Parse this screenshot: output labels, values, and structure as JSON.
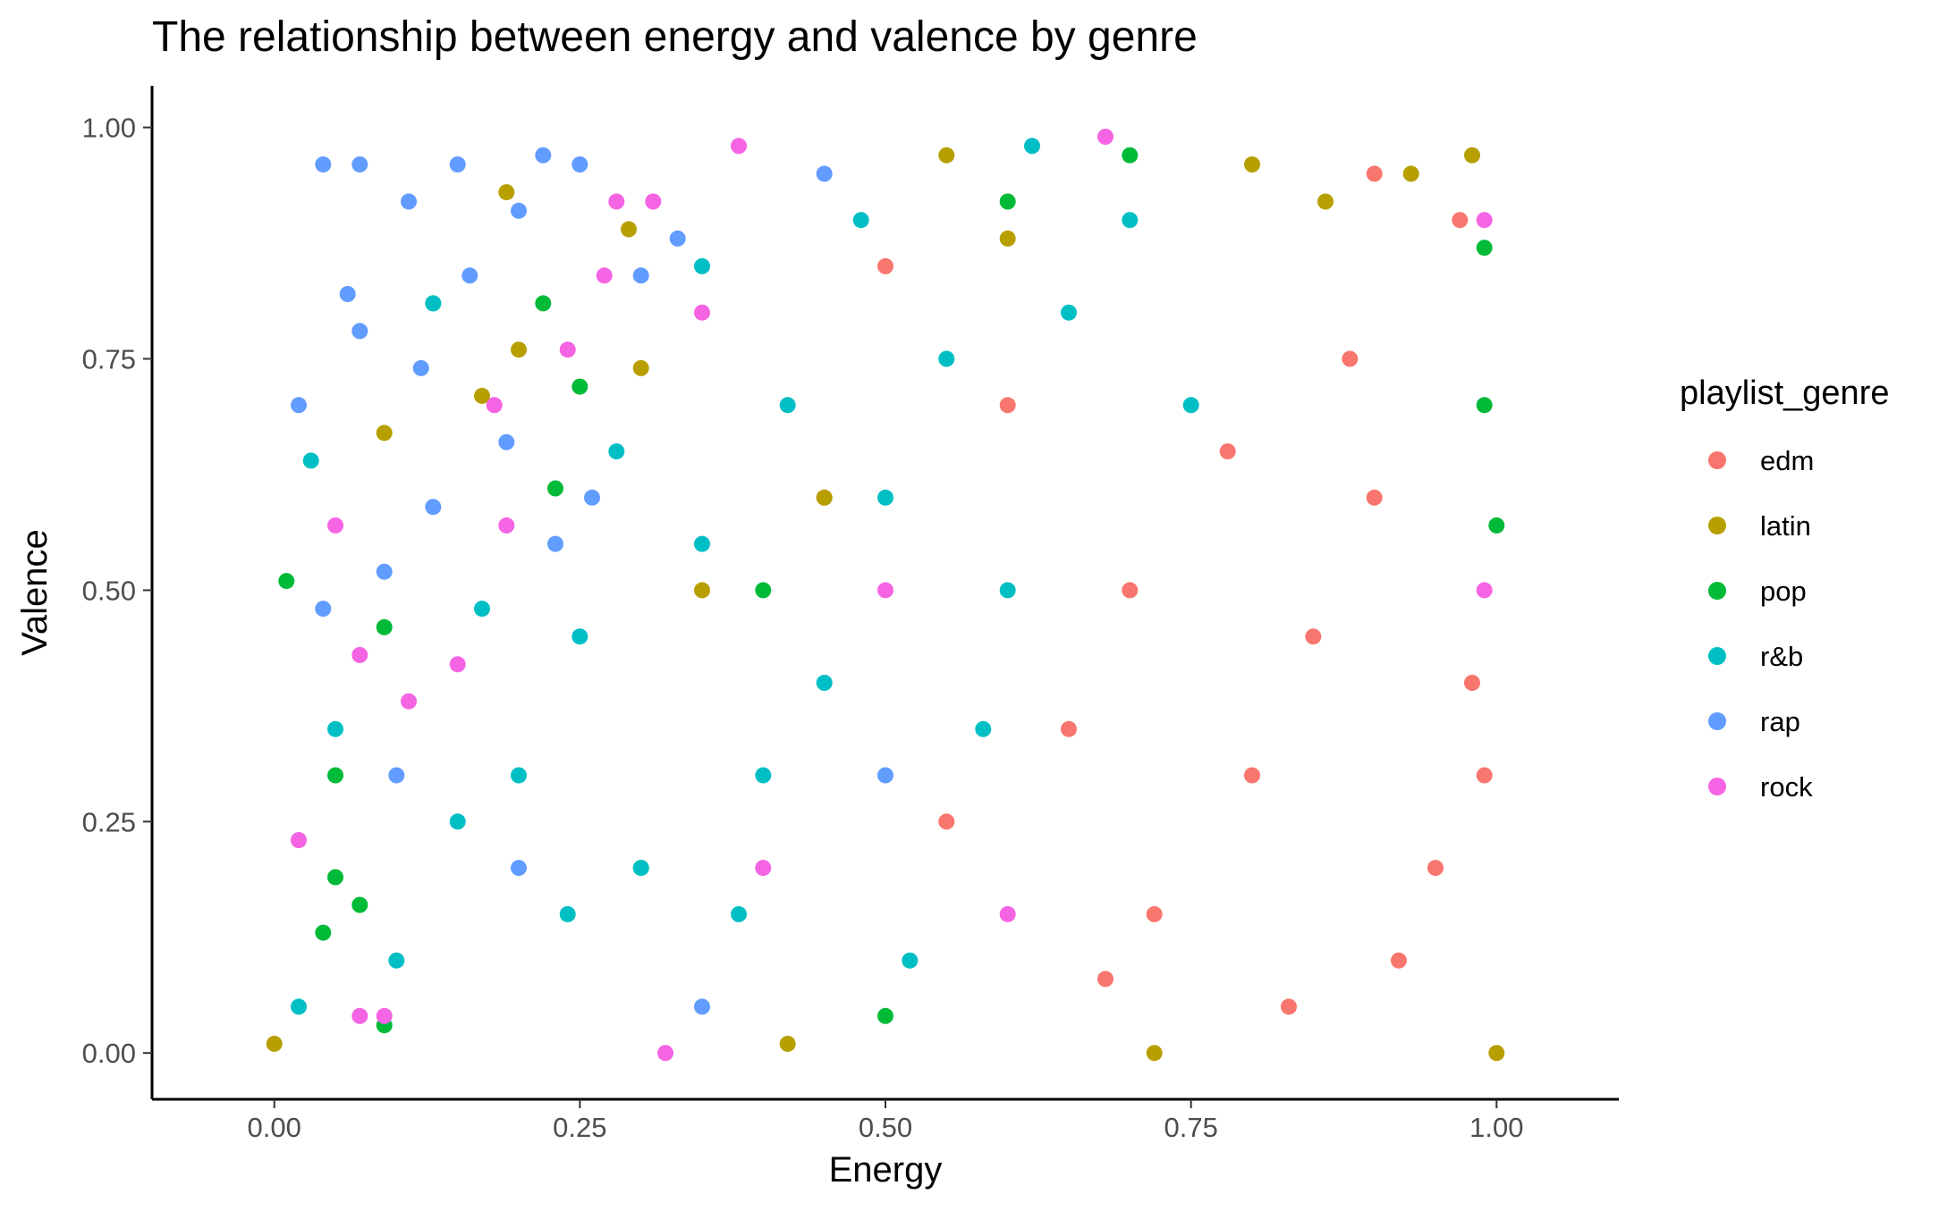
{
  "chart_data": {
    "type": "scatter",
    "title": "The relationship between energy and valence by genre",
    "xlabel": "Energy",
    "ylabel": "Valence",
    "xlim": [
      -0.1,
      1.1
    ],
    "ylim": [
      -0.05,
      1.045
    ],
    "x_ticks": [
      "0.00",
      "0.25",
      "0.50",
      "0.75",
      "1.00"
    ],
    "y_ticks": [
      "0.00",
      "0.25",
      "0.50",
      "0.75",
      "1.00"
    ],
    "grid": false,
    "legend": {
      "title": "playlist_genre",
      "placement": "right"
    },
    "series": [
      {
        "name": "edm",
        "color": "#F8766D",
        "points": [
          [
            0.85,
            0.45
          ],
          [
            0.9,
            0.6
          ],
          [
            0.8,
            0.3
          ],
          [
            0.95,
            0.2
          ],
          [
            0.7,
            0.5
          ],
          [
            0.88,
            0.75
          ],
          [
            0.92,
            0.1
          ],
          [
            0.78,
            0.65
          ],
          [
            0.98,
            0.4
          ],
          [
            0.65,
            0.35
          ],
          [
            0.6,
            0.7
          ],
          [
            0.55,
            0.25
          ],
          [
            0.97,
            0.9
          ],
          [
            0.83,
            0.05
          ],
          [
            0.45,
            0.6
          ],
          [
            0.72,
            0.15
          ],
          [
            0.9,
            0.95
          ],
          [
            0.99,
            0.3
          ],
          [
            0.5,
            0.85
          ],
          [
            0.68,
            0.08
          ]
        ]
      },
      {
        "name": "latin",
        "color": "#B79F00",
        "points": [
          [
            0.0,
            0.01
          ],
          [
            0.72,
            0.0
          ],
          [
            0.19,
            0.93
          ],
          [
            0.2,
            0.76
          ],
          [
            0.09,
            0.67
          ],
          [
            0.29,
            0.89
          ],
          [
            0.42,
            0.01
          ],
          [
            1.0,
            0.0
          ],
          [
            0.98,
            0.97
          ],
          [
            0.93,
            0.95
          ],
          [
            0.6,
            0.88
          ],
          [
            0.45,
            0.6
          ],
          [
            0.3,
            0.74
          ],
          [
            0.17,
            0.71
          ],
          [
            0.86,
            0.92
          ],
          [
            0.55,
            0.97
          ],
          [
            0.8,
            0.96
          ],
          [
            0.35,
            0.5
          ]
        ]
      },
      {
        "name": "pop",
        "color": "#00BA38",
        "points": [
          [
            0.01,
            0.51
          ],
          [
            0.05,
            0.19
          ],
          [
            0.04,
            0.13
          ],
          [
            0.09,
            0.03
          ],
          [
            0.07,
            0.16
          ],
          [
            0.13,
            0.81
          ],
          [
            0.22,
            0.81
          ],
          [
            0.23,
            0.61
          ],
          [
            0.09,
            0.46
          ],
          [
            0.05,
            0.3
          ],
          [
            0.99,
            0.87
          ],
          [
            0.99,
            0.7
          ],
          [
            1.0,
            0.57
          ],
          [
            0.25,
            0.72
          ],
          [
            0.4,
            0.5
          ],
          [
            0.6,
            0.92
          ],
          [
            0.7,
            0.97
          ],
          [
            0.3,
            0.2
          ],
          [
            0.5,
            0.04
          ]
        ]
      },
      {
        "name": "r&b",
        "color": "#00BFC4",
        "points": [
          [
            0.5,
            0.6
          ],
          [
            0.55,
            0.75
          ],
          [
            0.45,
            0.4
          ],
          [
            0.4,
            0.3
          ],
          [
            0.35,
            0.55
          ],
          [
            0.6,
            0.5
          ],
          [
            0.65,
            0.8
          ],
          [
            0.3,
            0.2
          ],
          [
            0.2,
            0.3
          ],
          [
            0.25,
            0.45
          ],
          [
            0.05,
            0.35
          ],
          [
            0.02,
            0.05
          ],
          [
            0.7,
            0.9
          ],
          [
            0.38,
            0.15
          ],
          [
            0.48,
            0.9
          ],
          [
            0.15,
            0.25
          ],
          [
            0.42,
            0.7
          ],
          [
            0.58,
            0.35
          ],
          [
            0.28,
            0.65
          ],
          [
            0.1,
            0.1
          ],
          [
            0.75,
            0.7
          ],
          [
            0.52,
            0.1
          ],
          [
            0.35,
            0.85
          ],
          [
            0.62,
            0.98
          ],
          [
            0.03,
            0.64
          ],
          [
            0.13,
            0.81
          ],
          [
            0.17,
            0.48
          ],
          [
            0.24,
            0.15
          ]
        ]
      },
      {
        "name": "rap",
        "color": "#619CFF",
        "points": [
          [
            0.04,
            0.96
          ],
          [
            0.07,
            0.96
          ],
          [
            0.15,
            0.96
          ],
          [
            0.11,
            0.92
          ],
          [
            0.22,
            0.97
          ],
          [
            0.2,
            0.91
          ],
          [
            0.06,
            0.82
          ],
          [
            0.02,
            0.7
          ],
          [
            0.07,
            0.78
          ],
          [
            0.16,
            0.84
          ],
          [
            0.13,
            0.59
          ],
          [
            0.04,
            0.48
          ],
          [
            0.09,
            0.52
          ],
          [
            0.12,
            0.74
          ],
          [
            0.19,
            0.66
          ],
          [
            0.26,
            0.6
          ],
          [
            0.33,
            0.88
          ],
          [
            0.3,
            0.84
          ],
          [
            0.23,
            0.55
          ],
          [
            0.1,
            0.3
          ],
          [
            0.2,
            0.2
          ],
          [
            0.35,
            0.05
          ],
          [
            0.5,
            0.3
          ],
          [
            0.45,
            0.95
          ],
          [
            0.25,
            0.96
          ]
        ]
      },
      {
        "name": "rock",
        "color": "#F564E3",
        "points": [
          [
            0.32,
            0.0
          ],
          [
            0.38,
            0.98
          ],
          [
            0.68,
            0.99
          ],
          [
            0.02,
            0.23
          ],
          [
            0.05,
            0.57
          ],
          [
            0.07,
            0.43
          ],
          [
            0.07,
            0.04
          ],
          [
            0.09,
            0.04
          ],
          [
            0.11,
            0.38
          ],
          [
            0.18,
            0.7
          ],
          [
            0.24,
            0.76
          ],
          [
            0.28,
            0.92
          ],
          [
            0.27,
            0.84
          ],
          [
            0.31,
            0.92
          ],
          [
            0.19,
            0.57
          ],
          [
            0.15,
            0.42
          ],
          [
            0.4,
            0.2
          ],
          [
            0.5,
            0.5
          ],
          [
            0.6,
            0.15
          ],
          [
            0.99,
            0.5
          ],
          [
            0.99,
            0.9
          ],
          [
            0.35,
            0.8
          ]
        ]
      }
    ]
  }
}
